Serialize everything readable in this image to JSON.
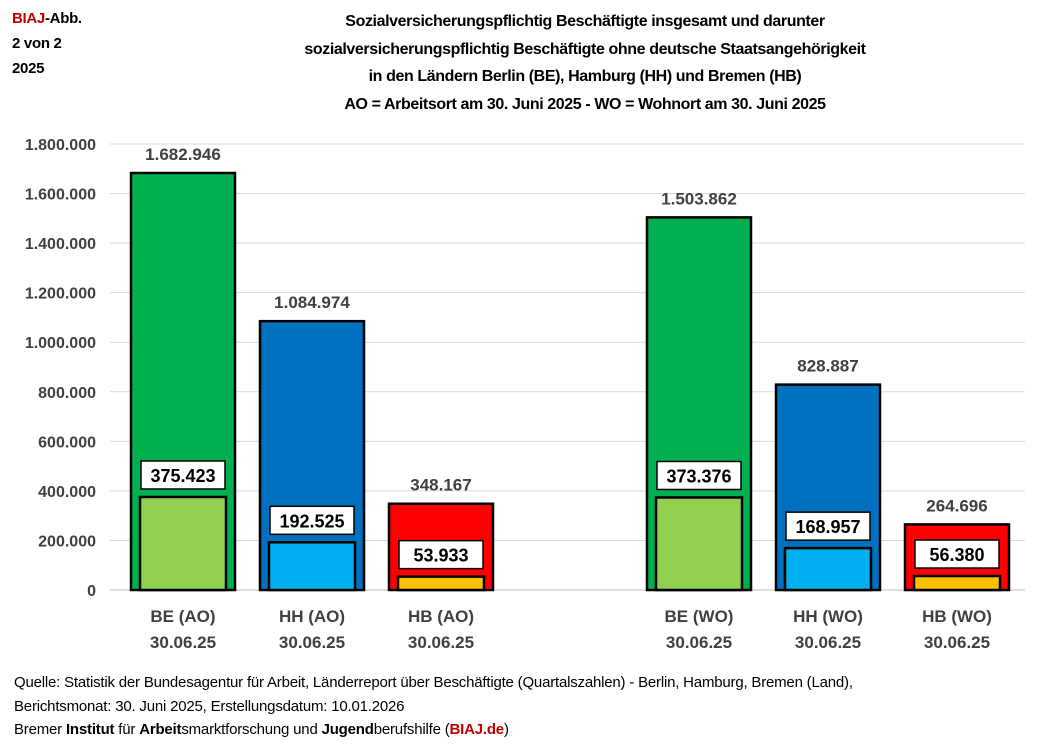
{
  "header": {
    "brand": "BIAJ",
    "abb": "-Abb.",
    "page": "2 von 2",
    "year": "2025"
  },
  "title_lines": [
    "Sozialversicherungspflichtig Beschäftigte insgesamt und darunter",
    "sozialversicherungspflichtig  Beschäftigte ohne deutsche Staatsangehörigkeit",
    "in den Ländern Berlin (BE), Hamburg (HH) und Bremen (HB)",
    "AO = Arbeitsort am 30. Juni 2025 - WO = Wohnort am 30. Juni 2025"
  ],
  "chart_data": {
    "type": "bar",
    "categories": [
      [
        "BE (AO)",
        "30.06.25"
      ],
      [
        "HH (AO)",
        "30.06.25"
      ],
      [
        "HB (AO)",
        "30.06.25"
      ],
      [
        "BE (WO)",
        "30.06.25"
      ],
      [
        "HH (WO)",
        "30.06.25"
      ],
      [
        "HB (WO)",
        "30.06.25"
      ]
    ],
    "series": [
      {
        "values": [
          1682946,
          1084974,
          348167,
          1503862,
          828887,
          264696
        ],
        "labels": [
          "1.682.946",
          "1.084.974",
          "348.167",
          "1.503.862",
          "828.887",
          "264.696"
        ]
      },
      {
        "values": [
          375423,
          192525,
          53933,
          373376,
          168957,
          56380
        ],
        "labels": [
          "375.423",
          "192.525",
          "53.933",
          "373.376",
          "168.957",
          "56.380"
        ]
      }
    ],
    "colors_total": [
      "#00B050",
      "#0070C0",
      "#FF0000",
      "#00B050",
      "#0070C0",
      "#FF0000"
    ],
    "colors_foreign": [
      "#92D050",
      "#00B0F0",
      "#FFC000",
      "#92D050",
      "#00B0F0",
      "#FFC000"
    ],
    "ylim": [
      0,
      1800000
    ],
    "yticks": [
      "0",
      "200.000",
      "400.000",
      "600.000",
      "800.000",
      "1.000.000",
      "1.200.000",
      "1.400.000",
      "1.600.000",
      "1.800.000"
    ],
    "grid": true
  },
  "source": {
    "line1": "Quelle: Statistik der Bundesagentur für Arbeit, Länderreport über Beschäftigte (Quartalszahlen) - Berlin, Hamburg, Bremen (Land),",
    "line2": "Berichtsmonat: 30. Juni 2025, Erstellungsdatum: 10.01.2026",
    "line3_parts": [
      "Bremer ",
      "Institut",
      " für ",
      "Arbeit",
      "smarktforschung und ",
      "Jugend",
      "berufshilfe (",
      "BIAJ.de",
      ")"
    ]
  }
}
